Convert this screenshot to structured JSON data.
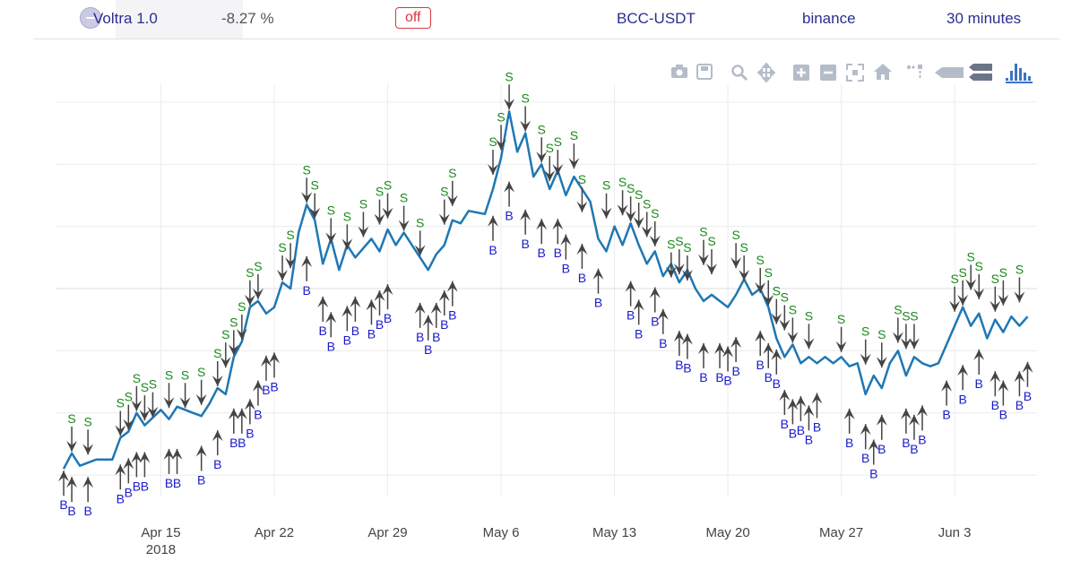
{
  "header": {
    "strategy": "Voltra 1.0",
    "profit": "-8.27 %",
    "status": "off",
    "pair": "BCC-USDT",
    "exchange": "binance",
    "timeframe": "30 minutes"
  },
  "toolbar": [
    "camera-icon",
    "save-icon",
    "zoom-icon",
    "pan-icon",
    "zoom-in-icon",
    "zoom-out-icon",
    "autoscale-icon",
    "reset-axes-icon",
    "spike-lines-icon",
    "hover-closest-icon",
    "hover-compare-icon",
    "plotly-logo-icon"
  ],
  "colors": {
    "price": "#1f77b4",
    "sell": "#1a8a1a",
    "buy": "#1a1acc",
    "arrow": "#444444"
  },
  "chart_data": {
    "type": "line",
    "x_ticks": [
      {
        "date": "2018-04-15",
        "label": "Apr 15",
        "sublabel": "2018"
      },
      {
        "date": "2018-04-22",
        "label": "Apr 22"
      },
      {
        "date": "2018-04-29",
        "label": "Apr 29"
      },
      {
        "date": "2018-05-06",
        "label": "May 6"
      },
      {
        "date": "2018-05-13",
        "label": "May 13"
      },
      {
        "date": "2018-05-20",
        "label": "May 20"
      },
      {
        "date": "2018-05-27",
        "label": "May 27"
      },
      {
        "date": "2018-06-03",
        "label": "Jun 3"
      }
    ],
    "xlim": [
      "2018-04-08T12:00",
      "2018-06-08T02:00"
    ],
    "ylim": [
      0,
      6.4
    ],
    "grid": true,
    "price": [
      {
        "x": "2018-04-09T00:00",
        "y": 0.3
      },
      {
        "x": "2018-04-09T12:00",
        "y": 0.55
      },
      {
        "x": "2018-04-10T00:00",
        "y": 0.35
      },
      {
        "x": "2018-04-11T00:00",
        "y": 0.45
      },
      {
        "x": "2018-04-12T00:00",
        "y": 0.45
      },
      {
        "x": "2018-04-12T12:00",
        "y": 0.8
      },
      {
        "x": "2018-04-13T00:00",
        "y": 0.9
      },
      {
        "x": "2018-04-13T12:00",
        "y": 1.2
      },
      {
        "x": "2018-04-14T00:00",
        "y": 1.0
      },
      {
        "x": "2018-04-15T00:00",
        "y": 1.25
      },
      {
        "x": "2018-04-15T12:00",
        "y": 1.1
      },
      {
        "x": "2018-04-16T00:00",
        "y": 1.3
      },
      {
        "x": "2018-04-17T00:00",
        "y": 1.2
      },
      {
        "x": "2018-04-17T12:00",
        "y": 1.15
      },
      {
        "x": "2018-04-18T00:00",
        "y": 1.35
      },
      {
        "x": "2018-04-18T12:00",
        "y": 1.6
      },
      {
        "x": "2018-04-19T00:00",
        "y": 1.5
      },
      {
        "x": "2018-04-19T12:00",
        "y": 2.1
      },
      {
        "x": "2018-04-20T00:00",
        "y": 2.35
      },
      {
        "x": "2018-04-20T12:00",
        "y": 2.9
      },
      {
        "x": "2018-04-21T00:00",
        "y": 3.0
      },
      {
        "x": "2018-04-21T12:00",
        "y": 2.8
      },
      {
        "x": "2018-04-22T00:00",
        "y": 2.9
      },
      {
        "x": "2018-04-22T12:00",
        "y": 3.3
      },
      {
        "x": "2018-04-23T00:00",
        "y": 3.2
      },
      {
        "x": "2018-04-23T12:00",
        "y": 4.1
      },
      {
        "x": "2018-04-24T00:00",
        "y": 4.55
      },
      {
        "x": "2018-04-24T12:00",
        "y": 4.3
      },
      {
        "x": "2018-04-25T00:00",
        "y": 3.6
      },
      {
        "x": "2018-04-25T12:00",
        "y": 4.0
      },
      {
        "x": "2018-04-26T00:00",
        "y": 3.5
      },
      {
        "x": "2018-04-26T12:00",
        "y": 3.9
      },
      {
        "x": "2018-04-27T00:00",
        "y": 3.7
      },
      {
        "x": "2018-04-28T00:00",
        "y": 4.0
      },
      {
        "x": "2018-04-28T12:00",
        "y": 3.8
      },
      {
        "x": "2018-04-29T00:00",
        "y": 4.15
      },
      {
        "x": "2018-04-29T12:00",
        "y": 3.9
      },
      {
        "x": "2018-04-30T00:00",
        "y": 4.1
      },
      {
        "x": "2018-04-30T12:00",
        "y": 3.9
      },
      {
        "x": "2018-05-01T00:00",
        "y": 3.7
      },
      {
        "x": "2018-05-01T12:00",
        "y": 3.5
      },
      {
        "x": "2018-05-02T00:00",
        "y": 3.75
      },
      {
        "x": "2018-05-02T12:00",
        "y": 3.9
      },
      {
        "x": "2018-05-03T00:00",
        "y": 4.3
      },
      {
        "x": "2018-05-03T12:00",
        "y": 4.25
      },
      {
        "x": "2018-05-04T00:00",
        "y": 4.45
      },
      {
        "x": "2018-05-05T00:00",
        "y": 4.4
      },
      {
        "x": "2018-05-05T12:00",
        "y": 4.8
      },
      {
        "x": "2018-05-06T00:00",
        "y": 5.3
      },
      {
        "x": "2018-05-06T12:00",
        "y": 6.05
      },
      {
        "x": "2018-05-07T00:00",
        "y": 5.4
      },
      {
        "x": "2018-05-07T12:00",
        "y": 5.7
      },
      {
        "x": "2018-05-08T00:00",
        "y": 5.0
      },
      {
        "x": "2018-05-08T12:00",
        "y": 5.2
      },
      {
        "x": "2018-05-09T00:00",
        "y": 4.8
      },
      {
        "x": "2018-05-09T12:00",
        "y": 5.1
      },
      {
        "x": "2018-05-10T00:00",
        "y": 4.7
      },
      {
        "x": "2018-05-10T12:00",
        "y": 5.0
      },
      {
        "x": "2018-05-11T00:00",
        "y": 4.8
      },
      {
        "x": "2018-05-11T12:00",
        "y": 4.6
      },
      {
        "x": "2018-05-12T00:00",
        "y": 4.0
      },
      {
        "x": "2018-05-12T12:00",
        "y": 3.8
      },
      {
        "x": "2018-05-13T00:00",
        "y": 4.2
      },
      {
        "x": "2018-05-13T12:00",
        "y": 3.9
      },
      {
        "x": "2018-05-14T00:00",
        "y": 4.25
      },
      {
        "x": "2018-05-14T12:00",
        "y": 3.9
      },
      {
        "x": "2018-05-15T00:00",
        "y": 3.6
      },
      {
        "x": "2018-05-15T12:00",
        "y": 3.8
      },
      {
        "x": "2018-05-16T00:00",
        "y": 3.4
      },
      {
        "x": "2018-05-16T12:00",
        "y": 3.6
      },
      {
        "x": "2018-05-17T00:00",
        "y": 3.3
      },
      {
        "x": "2018-05-17T12:00",
        "y": 3.5
      },
      {
        "x": "2018-05-18T00:00",
        "y": 3.2
      },
      {
        "x": "2018-05-18T12:00",
        "y": 3.0
      },
      {
        "x": "2018-05-19T00:00",
        "y": 3.1
      },
      {
        "x": "2018-05-19T12:00",
        "y": 3.0
      },
      {
        "x": "2018-05-20T00:00",
        "y": 2.9
      },
      {
        "x": "2018-05-20T12:00",
        "y": 3.1
      },
      {
        "x": "2018-05-21T00:00",
        "y": 3.35
      },
      {
        "x": "2018-05-21T12:00",
        "y": 3.1
      },
      {
        "x": "2018-05-22T00:00",
        "y": 3.2
      },
      {
        "x": "2018-05-22T12:00",
        "y": 2.9
      },
      {
        "x": "2018-05-23T00:00",
        "y": 2.4
      },
      {
        "x": "2018-05-23T12:00",
        "y": 2.1
      },
      {
        "x": "2018-05-24T00:00",
        "y": 2.3
      },
      {
        "x": "2018-05-24T12:00",
        "y": 2.0
      },
      {
        "x": "2018-05-25T00:00",
        "y": 2.1
      },
      {
        "x": "2018-05-25T12:00",
        "y": 2.0
      },
      {
        "x": "2018-05-26T00:00",
        "y": 2.1
      },
      {
        "x": "2018-05-26T12:00",
        "y": 2.0
      },
      {
        "x": "2018-05-27T00:00",
        "y": 2.1
      },
      {
        "x": "2018-05-27T12:00",
        "y": 1.95
      },
      {
        "x": "2018-05-28T00:00",
        "y": 2.0
      },
      {
        "x": "2018-05-28T12:00",
        "y": 1.5
      },
      {
        "x": "2018-05-29T00:00",
        "y": 1.8
      },
      {
        "x": "2018-05-29T12:00",
        "y": 1.6
      },
      {
        "x": "2018-05-30T00:00",
        "y": 2.0
      },
      {
        "x": "2018-05-30T12:00",
        "y": 2.2
      },
      {
        "x": "2018-05-31T00:00",
        "y": 1.8
      },
      {
        "x": "2018-05-31T12:00",
        "y": 2.1
      },
      {
        "x": "2018-06-01T00:00",
        "y": 2.0
      },
      {
        "x": "2018-06-01T12:00",
        "y": 1.95
      },
      {
        "x": "2018-06-02T00:00",
        "y": 2.0
      },
      {
        "x": "2018-06-02T12:00",
        "y": 2.3
      },
      {
        "x": "2018-06-03T00:00",
        "y": 2.6
      },
      {
        "x": "2018-06-03T12:00",
        "y": 2.9
      },
      {
        "x": "2018-06-04T00:00",
        "y": 2.6
      },
      {
        "x": "2018-06-04T12:00",
        "y": 2.8
      },
      {
        "x": "2018-06-05T00:00",
        "y": 2.4
      },
      {
        "x": "2018-06-05T12:00",
        "y": 2.7
      },
      {
        "x": "2018-06-06T00:00",
        "y": 2.5
      },
      {
        "x": "2018-06-06T12:00",
        "y": 2.75
      },
      {
        "x": "2018-06-07T00:00",
        "y": 2.6
      },
      {
        "x": "2018-06-07T12:00",
        "y": 2.75
      }
    ],
    "sells": [
      {
        "x": "2018-04-09T12:00",
        "y": 0.55
      },
      {
        "x": "2018-04-10T12:00",
        "y": 0.5
      },
      {
        "x": "2018-04-12T12:00",
        "y": 0.8
      },
      {
        "x": "2018-04-13T00:00",
        "y": 0.9
      },
      {
        "x": "2018-04-13T12:00",
        "y": 1.2
      },
      {
        "x": "2018-04-14T00:00",
        "y": 1.05
      },
      {
        "x": "2018-04-14T12:00",
        "y": 1.1
      },
      {
        "x": "2018-04-15T12:00",
        "y": 1.25
      },
      {
        "x": "2018-04-16T12:00",
        "y": 1.25
      },
      {
        "x": "2018-04-17T12:00",
        "y": 1.3
      },
      {
        "x": "2018-04-18T12:00",
        "y": 1.6
      },
      {
        "x": "2018-04-19T00:00",
        "y": 1.9
      },
      {
        "x": "2018-04-19T12:00",
        "y": 2.1
      },
      {
        "x": "2018-04-20T00:00",
        "y": 2.35
      },
      {
        "x": "2018-04-20T12:00",
        "y": 2.9
      },
      {
        "x": "2018-04-21T00:00",
        "y": 3.0
      },
      {
        "x": "2018-04-22T12:00",
        "y": 3.3
      },
      {
        "x": "2018-04-23T00:00",
        "y": 3.5
      },
      {
        "x": "2018-04-24T00:00",
        "y": 4.55
      },
      {
        "x": "2018-04-24T12:00",
        "y": 4.3
      },
      {
        "x": "2018-04-25T12:00",
        "y": 3.9
      },
      {
        "x": "2018-04-26T12:00",
        "y": 3.8
      },
      {
        "x": "2018-04-27T12:00",
        "y": 4.0
      },
      {
        "x": "2018-04-28T12:00",
        "y": 4.2
      },
      {
        "x": "2018-04-29T00:00",
        "y": 4.3
      },
      {
        "x": "2018-04-30T00:00",
        "y": 4.1
      },
      {
        "x": "2018-05-01T00:00",
        "y": 3.7
      },
      {
        "x": "2018-05-02T12:00",
        "y": 4.2
      },
      {
        "x": "2018-05-03T00:00",
        "y": 4.5
      },
      {
        "x": "2018-05-05T12:00",
        "y": 5.0
      },
      {
        "x": "2018-05-06T00:00",
        "y": 5.4
      },
      {
        "x": "2018-05-06T12:00",
        "y": 6.05
      },
      {
        "x": "2018-05-07T12:00",
        "y": 5.7
      },
      {
        "x": "2018-05-08T12:00",
        "y": 5.2
      },
      {
        "x": "2018-05-09T00:00",
        "y": 4.9
      },
      {
        "x": "2018-05-09T12:00",
        "y": 5.0
      },
      {
        "x": "2018-05-10T12:00",
        "y": 5.1
      },
      {
        "x": "2018-05-11T00:00",
        "y": 4.4
      },
      {
        "x": "2018-05-12T12:00",
        "y": 4.3
      },
      {
        "x": "2018-05-13T12:00",
        "y": 4.35
      },
      {
        "x": "2018-05-14T00:00",
        "y": 4.25
      },
      {
        "x": "2018-05-14T12:00",
        "y": 4.15
      },
      {
        "x": "2018-05-15T00:00",
        "y": 4.0
      },
      {
        "x": "2018-05-15T12:00",
        "y": 3.85
      },
      {
        "x": "2018-05-16T12:00",
        "y": 3.35
      },
      {
        "x": "2018-05-17T00:00",
        "y": 3.4
      },
      {
        "x": "2018-05-17T12:00",
        "y": 3.3
      },
      {
        "x": "2018-05-18T12:00",
        "y": 3.55
      },
      {
        "x": "2018-05-19T00:00",
        "y": 3.4
      },
      {
        "x": "2018-05-20T12:00",
        "y": 3.5
      },
      {
        "x": "2018-05-21T00:00",
        "y": 3.3
      },
      {
        "x": "2018-05-22T00:00",
        "y": 3.1
      },
      {
        "x": "2018-05-22T12:00",
        "y": 2.9
      },
      {
        "x": "2018-05-23T00:00",
        "y": 2.6
      },
      {
        "x": "2018-05-23T12:00",
        "y": 2.5
      },
      {
        "x": "2018-05-24T00:00",
        "y": 2.3
      },
      {
        "x": "2018-05-25T00:00",
        "y": 2.2
      },
      {
        "x": "2018-05-27T00:00",
        "y": 2.15
      },
      {
        "x": "2018-05-28T12:00",
        "y": 1.95
      },
      {
        "x": "2018-05-29T12:00",
        "y": 1.9
      },
      {
        "x": "2018-05-30T12:00",
        "y": 2.3
      },
      {
        "x": "2018-05-31T00:00",
        "y": 2.2
      },
      {
        "x": "2018-05-31T12:00",
        "y": 2.2
      },
      {
        "x": "2018-06-03T00:00",
        "y": 2.8
      },
      {
        "x": "2018-06-03T12:00",
        "y": 2.9
      },
      {
        "x": "2018-06-04T00:00",
        "y": 3.15
      },
      {
        "x": "2018-06-04T12:00",
        "y": 3.0
      },
      {
        "x": "2018-06-05T12:00",
        "y": 2.8
      },
      {
        "x": "2018-06-06T00:00",
        "y": 2.9
      },
      {
        "x": "2018-06-07T00:00",
        "y": 2.95
      }
    ],
    "buys": [
      {
        "x": "2018-04-09T00:00",
        "y": 0.3
      },
      {
        "x": "2018-04-09T12:00",
        "y": 0.2
      },
      {
        "x": "2018-04-10T12:00",
        "y": 0.2
      },
      {
        "x": "2018-04-12T12:00",
        "y": 0.4
      },
      {
        "x": "2018-04-13T00:00",
        "y": 0.5
      },
      {
        "x": "2018-04-13T12:00",
        "y": 0.6
      },
      {
        "x": "2018-04-14T00:00",
        "y": 0.6
      },
      {
        "x": "2018-04-15T12:00",
        "y": 0.65
      },
      {
        "x": "2018-04-16T00:00",
        "y": 0.65
      },
      {
        "x": "2018-04-17T12:00",
        "y": 0.7
      },
      {
        "x": "2018-04-18T12:00",
        "y": 0.95
      },
      {
        "x": "2018-04-19T12:00",
        "y": 1.3
      },
      {
        "x": "2018-04-20T00:00",
        "y": 1.3
      },
      {
        "x": "2018-04-20T12:00",
        "y": 1.45
      },
      {
        "x": "2018-04-21T00:00",
        "y": 1.75
      },
      {
        "x": "2018-04-21T12:00",
        "y": 2.15
      },
      {
        "x": "2018-04-22T00:00",
        "y": 2.2
      },
      {
        "x": "2018-04-24T00:00",
        "y": 3.75
      },
      {
        "x": "2018-04-25T00:00",
        "y": 3.1
      },
      {
        "x": "2018-04-25T12:00",
        "y": 2.85
      },
      {
        "x": "2018-04-26T12:00",
        "y": 2.95
      },
      {
        "x": "2018-04-27T00:00",
        "y": 3.1
      },
      {
        "x": "2018-04-28T00:00",
        "y": 3.05
      },
      {
        "x": "2018-04-28T12:00",
        "y": 3.2
      },
      {
        "x": "2018-04-29T00:00",
        "y": 3.3
      },
      {
        "x": "2018-05-01T00:00",
        "y": 3.0
      },
      {
        "x": "2018-05-01T12:00",
        "y": 2.8
      },
      {
        "x": "2018-05-02T00:00",
        "y": 3.0
      },
      {
        "x": "2018-05-02T12:00",
        "y": 3.2
      },
      {
        "x": "2018-05-03T00:00",
        "y": 3.35
      },
      {
        "x": "2018-05-05T12:00",
        "y": 4.4
      },
      {
        "x": "2018-05-06T12:00",
        "y": 4.95
      },
      {
        "x": "2018-05-07T12:00",
        "y": 4.5
      },
      {
        "x": "2018-05-08T12:00",
        "y": 4.35
      },
      {
        "x": "2018-05-09T12:00",
        "y": 4.35
      },
      {
        "x": "2018-05-10T00:00",
        "y": 4.1
      },
      {
        "x": "2018-05-11T00:00",
        "y": 3.95
      },
      {
        "x": "2018-05-12T00:00",
        "y": 3.55
      },
      {
        "x": "2018-05-14T00:00",
        "y": 3.35
      },
      {
        "x": "2018-05-14T12:00",
        "y": 3.05
      },
      {
        "x": "2018-05-15T12:00",
        "y": 3.25
      },
      {
        "x": "2018-05-16T00:00",
        "y": 2.9
      },
      {
        "x": "2018-05-17T00:00",
        "y": 2.55
      },
      {
        "x": "2018-05-17T12:00",
        "y": 2.5
      },
      {
        "x": "2018-05-18T12:00",
        "y": 2.35
      },
      {
        "x": "2018-05-19T12:00",
        "y": 2.35
      },
      {
        "x": "2018-05-20T00:00",
        "y": 2.3
      },
      {
        "x": "2018-05-20T12:00",
        "y": 2.45
      },
      {
        "x": "2018-05-22T00:00",
        "y": 2.55
      },
      {
        "x": "2018-05-22T12:00",
        "y": 2.35
      },
      {
        "x": "2018-05-23T00:00",
        "y": 2.25
      },
      {
        "x": "2018-05-23T12:00",
        "y": 1.6
      },
      {
        "x": "2018-05-24T00:00",
        "y": 1.45
      },
      {
        "x": "2018-05-24T12:00",
        "y": 1.5
      },
      {
        "x": "2018-05-25T00:00",
        "y": 1.35
      },
      {
        "x": "2018-05-25T12:00",
        "y": 1.55
      },
      {
        "x": "2018-05-27T12:00",
        "y": 1.3
      },
      {
        "x": "2018-05-28T12:00",
        "y": 1.05
      },
      {
        "x": "2018-05-29T00:00",
        "y": 0.8
      },
      {
        "x": "2018-05-29T12:00",
        "y": 1.2
      },
      {
        "x": "2018-05-31T00:00",
        "y": 1.3
      },
      {
        "x": "2018-05-31T12:00",
        "y": 1.2
      },
      {
        "x": "2018-06-01T00:00",
        "y": 1.35
      },
      {
        "x": "2018-06-02T12:00",
        "y": 1.75
      },
      {
        "x": "2018-06-03T12:00",
        "y": 2.0
      },
      {
        "x": "2018-06-04T12:00",
        "y": 2.25
      },
      {
        "x": "2018-06-05T12:00",
        "y": 1.9
      },
      {
        "x": "2018-06-06T00:00",
        "y": 1.75
      },
      {
        "x": "2018-06-07T00:00",
        "y": 1.9
      },
      {
        "x": "2018-06-07T12:00",
        "y": 2.05
      }
    ]
  }
}
